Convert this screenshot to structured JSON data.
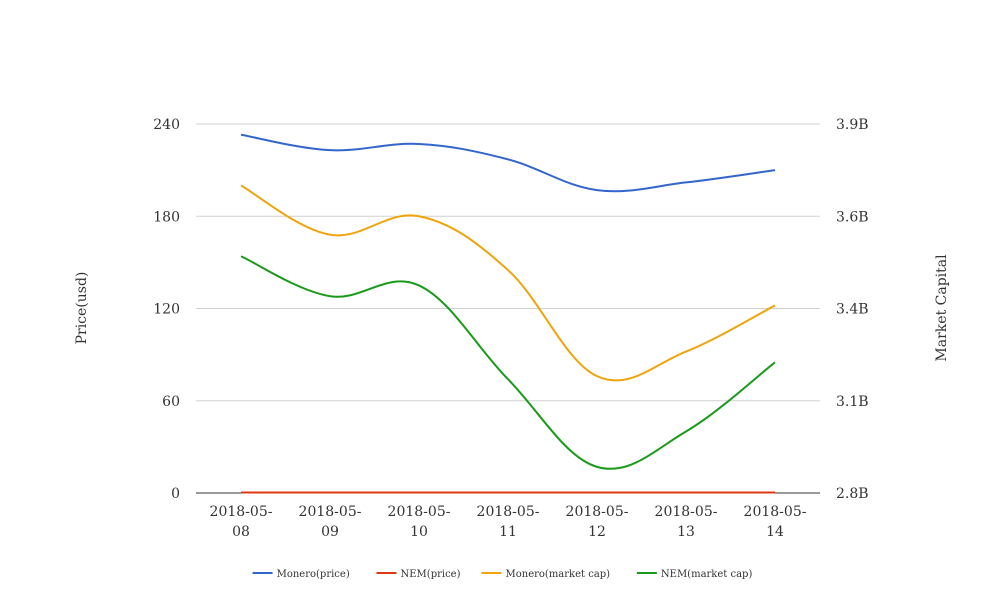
{
  "chart_data": {
    "type": "line",
    "title": "",
    "x": [
      "2018-05-08",
      "2018-05-09",
      "2018-05-10",
      "2018-05-11",
      "2018-05-12",
      "2018-05-13",
      "2018-05-14"
    ],
    "x_tick_lines": [
      [
        "2018-05-",
        "08"
      ],
      [
        "2018-05-",
        "09"
      ],
      [
        "2018-05-",
        "10"
      ],
      [
        "2018-05-",
        "11"
      ],
      [
        "2018-05-",
        "12"
      ],
      [
        "2018-05-",
        "13"
      ],
      [
        "2018-05-",
        "14"
      ]
    ],
    "ylabel_left": "Price(usd)",
    "ylabel_right": "Market Capital",
    "ylim_left": [
      0,
      240
    ],
    "ylim_right": [
      2.8,
      3.9
    ],
    "yticks_left": [
      0,
      60,
      120,
      180,
      240
    ],
    "yticks_left_labels": [
      "0",
      "60",
      "120",
      "180",
      "240"
    ],
    "yticks_right": [
      2.8,
      3.1,
      3.4,
      3.6,
      3.9
    ],
    "yticks_right_labels": [
      "2.8B",
      "3.1B",
      "3.4B",
      "3.6B",
      "3.9B"
    ],
    "grid": true,
    "legend_position": "bottom",
    "series": [
      {
        "name": "Monero(price)",
        "axis": "left",
        "color": "#3366cc",
        "values": [
          233,
          223,
          227,
          217,
          197,
          202,
          210
        ]
      },
      {
        "name": "NEM(price)",
        "axis": "left",
        "color": "#dc3912",
        "values": [
          0.35,
          0.32,
          0.33,
          0.31,
          0.29,
          0.3,
          0.31
        ]
      },
      {
        "name": "Monero(market cap)",
        "axis": "left",
        "color": "#f0a30a",
        "values": [
          200,
          168,
          180,
          145,
          76,
          92,
          122
        ]
      },
      {
        "name": "NEM(market cap)",
        "axis": "left",
        "color": "#1a9a1a",
        "values": [
          154,
          128,
          135,
          74,
          17,
          40,
          85
        ]
      }
    ]
  }
}
